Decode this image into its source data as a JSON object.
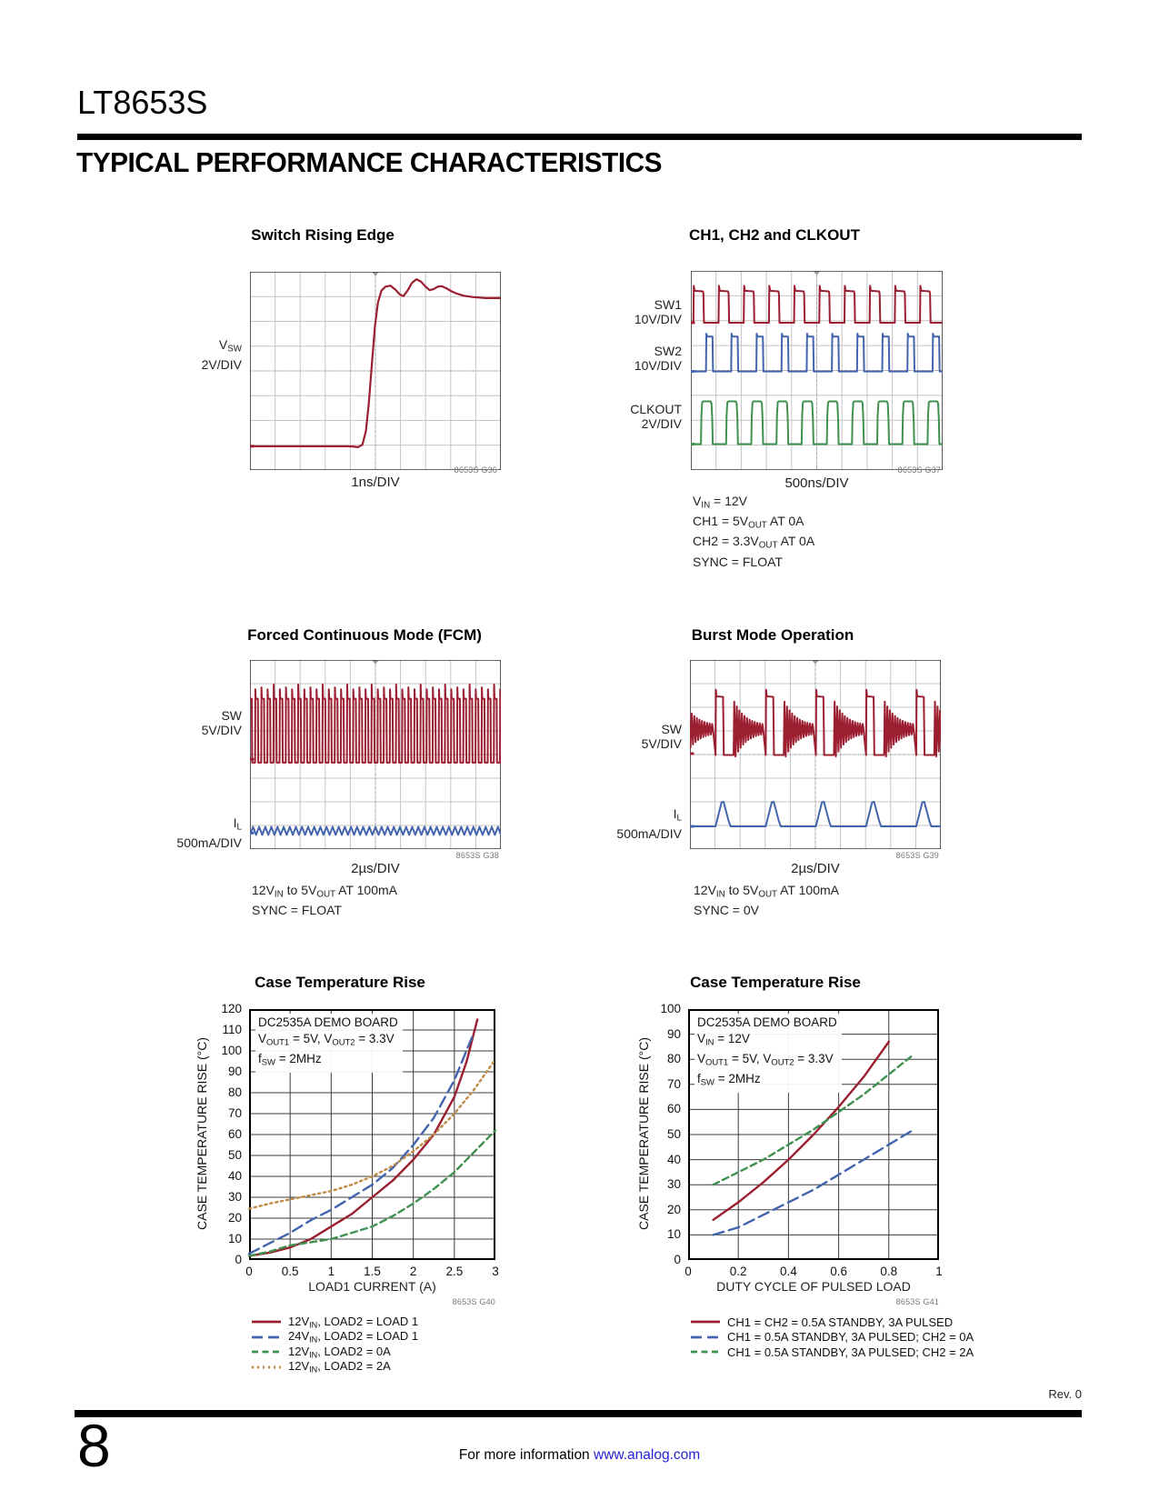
{
  "page": {
    "part_number": "LT8653S",
    "section_title": "TYPICAL PERFORMANCE CHARACTERISTICS",
    "rev": "Rev. 0",
    "page_number": "8",
    "footer_text": "For more information",
    "footer_link": "www.analog.com"
  },
  "colors": {
    "red": "#9B1F31",
    "blue": "#4364AE",
    "green": "#3F9150",
    "orange": "#BE8A45",
    "link_blue": "#2323d8"
  },
  "figures": {
    "g36": {
      "title": "Switch Rising Edge",
      "channels": [
        {
          "l1": "V~SW~",
          "l2": "2V/DIV"
        }
      ],
      "xlabel": "1ns/DIV",
      "graph_id": "8653S G36"
    },
    "g37": {
      "title": "CH1, CH2 and CLKOUT",
      "channels": [
        {
          "l1": "SW1",
          "l2": "10V/DIV"
        },
        {
          "l1": "SW2",
          "l2": "10V/DIV"
        },
        {
          "l1": "CLKOUT",
          "l2": "2V/DIV"
        }
      ],
      "xlabel": "500ns/DIV",
      "graph_id": "8653S G37",
      "notes": [
        "V~IN~ = 12V",
        "CH1 = 5V~OUT~ AT 0A",
        "CH2 = 3.3V~OUT~ AT 0A",
        "SYNC = FLOAT"
      ]
    },
    "g38": {
      "title": "Forced Continuous Mode (FCM)",
      "channels": [
        {
          "l1": "SW",
          "l2": "5V/DIV"
        },
        {
          "l1": "I~L~",
          "l2": "500mA/DIV"
        }
      ],
      "xlabel": "2µs/DIV",
      "graph_id": "8653S G38",
      "notes": [
        "12V~IN~ to 5V~OUT~ AT 100mA",
        "SYNC = FLOAT"
      ]
    },
    "g39": {
      "title": "Burst Mode Operation",
      "channels": [
        {
          "l1": "SW",
          "l2": "5V/DIV"
        },
        {
          "l1": "I~L~",
          "l2": "500mA/DIV"
        }
      ],
      "xlabel": "2µs/DIV",
      "graph_id": "8653S G39",
      "notes": [
        "12V~IN~ to 5V~OUT~ AT 100mA",
        "SYNC = 0V"
      ]
    }
  },
  "chart_data": [
    {
      "type": "line",
      "title": "Case Temperature Rise",
      "xlabel": "LOAD1 CURRENT (A)",
      "ylabel": "CASE TEMPERATURE RISE (°C)",
      "graph_id": "8653S G40",
      "xlim": [
        0,
        3
      ],
      "ylim": [
        0,
        120
      ],
      "xticks": [
        0,
        0.5,
        1,
        1.5,
        2,
        2.5,
        3
      ],
      "xtick_labels": [
        "0",
        "0.5",
        "1",
        "1.5",
        "2",
        "2.5",
        "3"
      ],
      "yticks": [
        0,
        10,
        20,
        30,
        40,
        50,
        60,
        70,
        80,
        90,
        100,
        110,
        120
      ],
      "grid": true,
      "legend_position": "below",
      "annotation": [
        "DC2535A DEMO BOARD",
        "V~OUT1~ = 5V, V~OUT2~ = 3.3V",
        "f~SW~ = 2MHz"
      ],
      "series": [
        {
          "name": "12V~IN~, LOAD2 = LOAD 1",
          "color": "red",
          "style": "solid",
          "points": [
            [
              0,
              2
            ],
            [
              0.25,
              3.5
            ],
            [
              0.5,
              6
            ],
            [
              0.75,
              10
            ],
            [
              1,
              16
            ],
            [
              1.25,
              22
            ],
            [
              1.5,
              30
            ],
            [
              1.75,
              38
            ],
            [
              2,
              48
            ],
            [
              2.25,
              60
            ],
            [
              2.5,
              78
            ],
            [
              2.65,
              95
            ],
            [
              2.78,
              115
            ]
          ]
        },
        {
          "name": "24V~IN~, LOAD2 = LOAD 1",
          "color": "blue",
          "style": "longdash",
          "points": [
            [
              0,
              3
            ],
            [
              0.25,
              8
            ],
            [
              0.5,
              13
            ],
            [
              0.75,
              19
            ],
            [
              1,
              24
            ],
            [
              1.25,
              30
            ],
            [
              1.5,
              36
            ],
            [
              1.75,
              44
            ],
            [
              2,
              55
            ],
            [
              2.25,
              68
            ],
            [
              2.5,
              86
            ],
            [
              2.73,
              108
            ]
          ]
        },
        {
          "name": "12V~IN~, LOAD2 = 0A",
          "color": "green",
          "style": "dash",
          "points": [
            [
              0,
              2
            ],
            [
              0.25,
              4
            ],
            [
              0.5,
              7
            ],
            [
              0.75,
              8.5
            ],
            [
              1,
              10
            ],
            [
              1.25,
              13
            ],
            [
              1.5,
              16
            ],
            [
              1.75,
              21
            ],
            [
              2,
              27
            ],
            [
              2.25,
              34
            ],
            [
              2.5,
              42
            ],
            [
              2.75,
              52
            ],
            [
              3,
              62
            ]
          ]
        },
        {
          "name": "12V~IN~, LOAD2 = 2A",
          "color": "orange",
          "style": "dot",
          "points": [
            [
              0,
              24.5
            ],
            [
              0.25,
              27
            ],
            [
              0.5,
              29
            ],
            [
              0.75,
              31
            ],
            [
              1,
              33
            ],
            [
              1.25,
              36
            ],
            [
              1.5,
              40
            ],
            [
              1.75,
              45
            ],
            [
              2,
              52
            ],
            [
              2.25,
              60
            ],
            [
              2.5,
              70
            ],
            [
              2.75,
              82
            ],
            [
              3,
              96
            ]
          ]
        }
      ]
    },
    {
      "type": "line",
      "title": "Case Temperature Rise",
      "xlabel": "DUTY CYCLE OF PULSED LOAD",
      "ylabel": "CASE TEMPERATURE RISE (°C)",
      "graph_id": "8653S G41",
      "xlim": [
        0,
        1
      ],
      "ylim": [
        0,
        100
      ],
      "xticks": [
        0,
        0.2,
        0.4,
        0.6,
        0.8,
        1
      ],
      "xtick_labels": [
        "0",
        "0.2",
        "0.4",
        "0.6",
        "0.8",
        "1"
      ],
      "yticks": [
        0,
        10,
        20,
        30,
        40,
        50,
        60,
        70,
        80,
        90,
        100
      ],
      "grid": true,
      "legend_position": "below",
      "annotation": [
        "DC2535A DEMO BOARD",
        "V~IN~ = 12V",
        "V~OUT1~ = 5V, V~OUT2~ = 3.3V",
        "f~SW~ = 2MHz"
      ],
      "series": [
        {
          "name": "CH1 = CH2 = 0.5A STANDBY, 3A PULSED",
          "color": "red",
          "style": "solid",
          "points": [
            [
              0.1,
              16
            ],
            [
              0.2,
              23
            ],
            [
              0.3,
              31
            ],
            [
              0.4,
              40
            ],
            [
              0.5,
              50
            ],
            [
              0.6,
              61
            ],
            [
              0.7,
              73
            ],
            [
              0.8,
              87
            ]
          ]
        },
        {
          "name": "CH1 = 0.5A STANDBY, 3A PULSED; CH2 = 0A",
          "color": "blue",
          "style": "longdash",
          "points": [
            [
              0.1,
              10
            ],
            [
              0.15,
              11.5
            ],
            [
              0.2,
              13
            ],
            [
              0.3,
              18
            ],
            [
              0.4,
              23
            ],
            [
              0.5,
              28
            ],
            [
              0.6,
              34
            ],
            [
              0.7,
              40
            ],
            [
              0.8,
              46
            ],
            [
              0.9,
              52
            ]
          ]
        },
        {
          "name": "CH1 = 0.5A STANDBY, 3A PULSED; CH2 = 2A",
          "color": "green",
          "style": "dash",
          "points": [
            [
              0.1,
              30
            ],
            [
              0.2,
              35
            ],
            [
              0.3,
              40
            ],
            [
              0.4,
              46
            ],
            [
              0.5,
              52
            ],
            [
              0.6,
              59
            ],
            [
              0.7,
              66
            ],
            [
              0.8,
              74
            ],
            [
              0.9,
              82
            ]
          ]
        }
      ]
    }
  ]
}
